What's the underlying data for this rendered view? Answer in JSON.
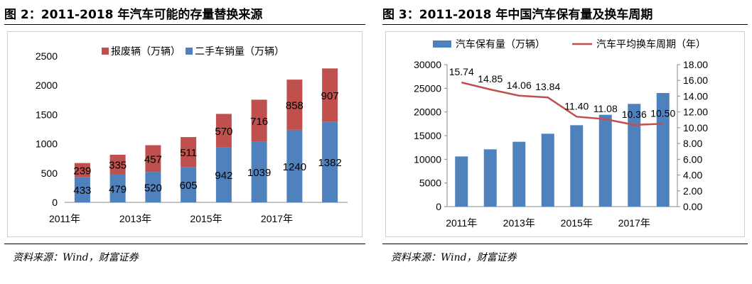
{
  "figures": [
    {
      "title": "图 2：2011-2018 年汽车可能的存量替换来源",
      "source": "资料来源：Wind，财富证券"
    },
    {
      "title": "图 3：2011-2018 年中国汽车保有量及换车周期",
      "source": "资料来源：Wind，财富证券"
    }
  ],
  "chart_data": [
    {
      "type": "bar",
      "stacked": true,
      "categories": [
        "2011年",
        "2012年",
        "2013年",
        "2014年",
        "2015年",
        "2016年",
        "2017年",
        "2018年"
      ],
      "tick_labels": [
        "2011年",
        "2013年",
        "2015年",
        "2017年"
      ],
      "series": [
        {
          "name": "二手车销量（万辆）",
          "color": "#4f81bd",
          "values": [
            433,
            479,
            520,
            605,
            942,
            1039,
            1240,
            1382
          ]
        },
        {
          "name": "报废辆（万辆）",
          "color": "#c0504d",
          "values": [
            239,
            335,
            457,
            511,
            570,
            716,
            858,
            907
          ]
        }
      ],
      "legend_order": [
        "报废辆（万辆）",
        "二手车销量（万辆）"
      ],
      "legend_position": "top",
      "ylim": [
        0,
        2500
      ],
      "yticks": [
        0,
        500,
        1000,
        1500,
        2000,
        2500
      ],
      "grid": false,
      "data_labels": true
    },
    {
      "type": "bar+line",
      "categories": [
        "2011年",
        "2012年",
        "2013年",
        "2014年",
        "2015年",
        "2016年",
        "2017年",
        "2018年"
      ],
      "tick_labels": [
        "2011年",
        "2013年",
        "2015年",
        "2017年"
      ],
      "series": [
        {
          "name": "汽车保有量（万辆）",
          "type": "bar",
          "axis": "left",
          "color": "#4f81bd",
          "values": [
            10600,
            12100,
            13700,
            15400,
            17200,
            19400,
            21700,
            24000
          ]
        },
        {
          "name": "汽车平均换车周期（年）",
          "type": "line",
          "axis": "right",
          "color": "#c0504d",
          "values": [
            15.74,
            14.85,
            14.06,
            13.84,
            11.4,
            11.08,
            10.36,
            10.5
          ],
          "labels": [
            "15.74",
            "14.85",
            "14.06",
            "13.84",
            "11.40",
            "11.08",
            "10.36",
            "10.50"
          ]
        }
      ],
      "legend_position": "top",
      "ylim": [
        0,
        30000
      ],
      "yticks": [
        0,
        5000,
        10000,
        15000,
        20000,
        25000,
        30000
      ],
      "y2lim": [
        0,
        18
      ],
      "y2ticks": [
        "0.00",
        "2.00",
        "4.00",
        "6.00",
        "8.00",
        "10.00",
        "12.00",
        "14.00",
        "16.00",
        "18.00"
      ],
      "grid": false
    }
  ]
}
